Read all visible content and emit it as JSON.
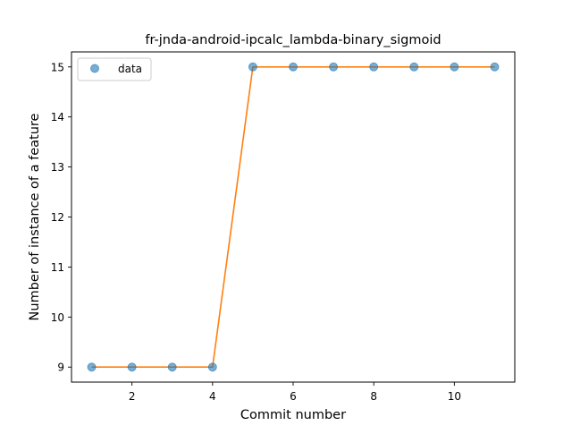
{
  "chart_data": {
    "type": "line",
    "title": "fr-jnda-android-ipcalc_lambda-binary_sigmoid",
    "xlabel": "Commit number",
    "ylabel": "Number of instance of a feature",
    "x": [
      1,
      2,
      3,
      4,
      5,
      6,
      7,
      8,
      9,
      10,
      11
    ],
    "series": [
      {
        "name": "data",
        "kind": "scatter",
        "color": "#1f77b4",
        "values": [
          9,
          9,
          9,
          9,
          15,
          15,
          15,
          15,
          15,
          15,
          15
        ]
      },
      {
        "kind": "line",
        "color": "#ff7f0e",
        "values": [
          9,
          9,
          9,
          9,
          15,
          15,
          15,
          15,
          15,
          15,
          15
        ]
      }
    ],
    "xlim": [
      0.5,
      11.5
    ],
    "ylim": [
      8.7,
      15.3
    ],
    "xticks": [
      2,
      4,
      6,
      8,
      10
    ],
    "xtick_labels": [
      "2",
      "4",
      "6",
      "8",
      "10"
    ],
    "yticks": [
      9,
      10,
      11,
      12,
      13,
      14,
      15
    ],
    "ytick_labels": [
      "9",
      "10",
      "11",
      "12",
      "13",
      "14",
      "15"
    ],
    "grid": false,
    "legend": {
      "placement": "top-left",
      "entries": [
        "data"
      ]
    }
  }
}
